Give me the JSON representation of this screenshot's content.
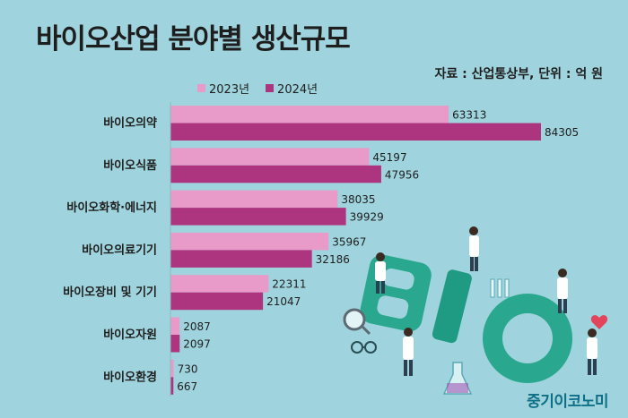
{
  "title": "바이오산업 분야별 생산규모",
  "source": "자료 : 산업통상부, 단위 : 억 원",
  "brand": "중기이코노미",
  "colors": {
    "2023년": "#e89ac8",
    "2024년": "#ad357f"
  },
  "chart_data": {
    "type": "bar",
    "orientation": "horizontal",
    "title": "바이오산업 분야별 생산규모",
    "categories": [
      "바이오의약",
      "바이오식품",
      "바이오화학·에너지",
      "바이오의료기기",
      "바이오장비 및 기기",
      "바이오자원",
      "바이오환경"
    ],
    "series": [
      {
        "name": "2023년",
        "values": [
          63313,
          45197,
          38035,
          35967,
          22311,
          2087,
          730
        ]
      },
      {
        "name": "2024년",
        "values": [
          84305,
          47956,
          39929,
          32186,
          21047,
          2097,
          667
        ]
      }
    ],
    "xlim": [
      0,
      90000
    ],
    "grid": false,
    "legend": "top"
  }
}
